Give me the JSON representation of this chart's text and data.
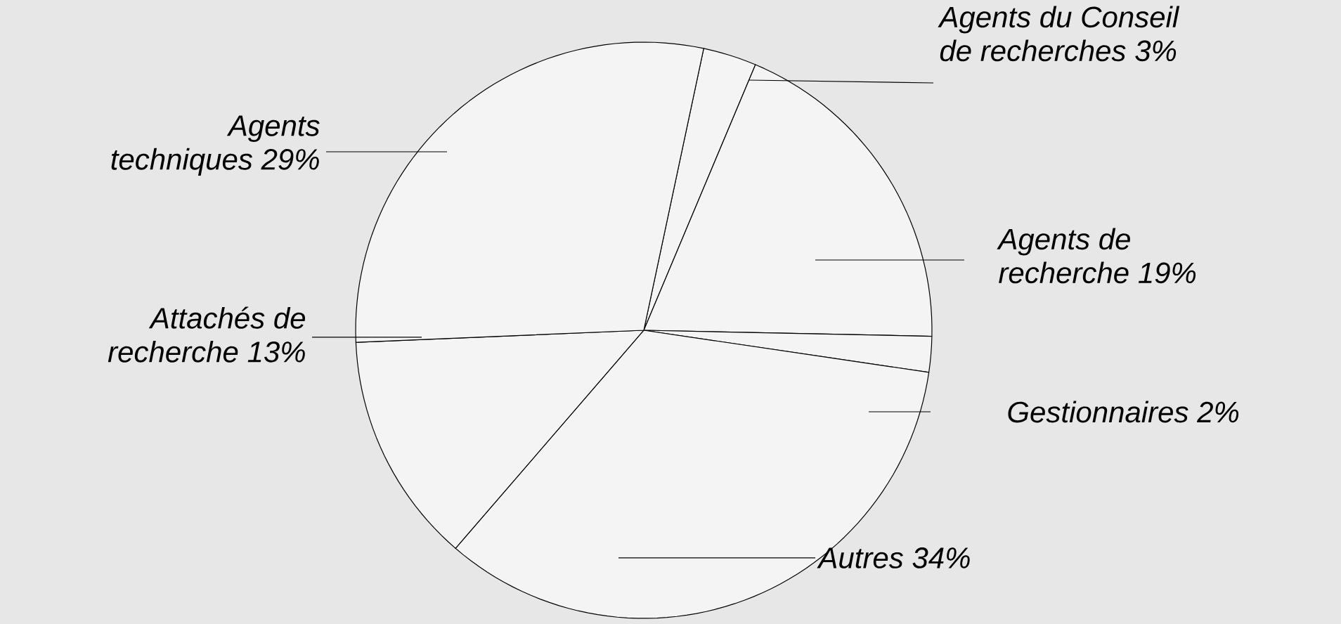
{
  "chart_data": {
    "type": "pie",
    "categories": [
      "Agents du Conseil de recherches",
      "Agents de recherche",
      "Gestionnaires",
      "Autres",
      "Attachés de recherche",
      "Agents techniques"
    ],
    "values": [
      3,
      19,
      2,
      34,
      13,
      29
    ],
    "value_labels": [
      "3%",
      "19%",
      "2%",
      "34%",
      "13%",
      "29%"
    ],
    "colors": [
      "#f4f4f4",
      "#f4f4f4",
      "#f4f4f4",
      "#f4f4f4",
      "#f4f4f4",
      "#f4f4f4"
    ]
  }
}
